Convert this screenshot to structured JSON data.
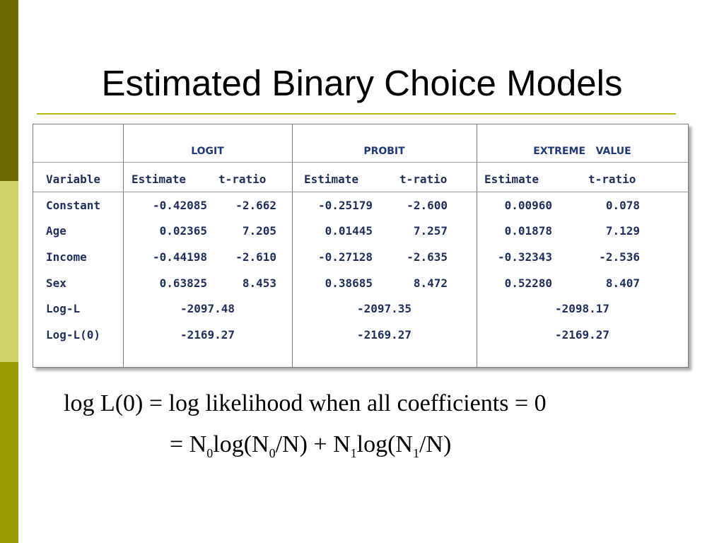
{
  "slide": {
    "title": "Estimated Binary Choice Models"
  },
  "table": {
    "groups": [
      "LOGIT",
      "PROBIT",
      "EXTREME   VALUE"
    ],
    "headers": {
      "variable": "Variable",
      "logit_est": "Estimate",
      "logit_t": "t-ratio",
      "probit_est": "Estimate",
      "probit_t": "t-ratio",
      "ev_est": "Estimate",
      "ev_t": "t-ratio"
    },
    "rows": [
      {
        "label": "Constant",
        "logit_est": "-0.42085",
        "logit_t": "-2.662",
        "probit_est": "-0.25179",
        "probit_t": "-2.600",
        "ev_est": "0.00960",
        "ev_t": "0.078"
      },
      {
        "label": "Age",
        "logit_est": "0.02365",
        "logit_t": "7.205",
        "probit_est": "0.01445",
        "probit_t": "7.257",
        "ev_est": "0.01878",
        "ev_t": "7.129"
      },
      {
        "label": "Income",
        "logit_est": "-0.44198",
        "logit_t": "-2.610",
        "probit_est": "-0.27128",
        "probit_t": "-2.635",
        "ev_est": "-0.32343",
        "ev_t": "-2.536"
      },
      {
        "label": "Sex",
        "logit_est": "0.63825",
        "logit_t": "8.453",
        "probit_est": "0.38685",
        "probit_t": "8.472",
        "ev_est": "0.52280",
        "ev_t": "8.407"
      }
    ],
    "summary": [
      {
        "label": "Log-L",
        "logit": "-2097.48",
        "probit": "-2097.35",
        "ev": "-2098.17"
      },
      {
        "label": "Log-L(0)",
        "logit": "-2169.27",
        "probit": "-2169.27",
        "ev": "-2169.27"
      }
    ]
  },
  "formula": {
    "line1": "log L(0) = log likelihood when all coefficients = 0",
    "eq": "=",
    "n": "N",
    "log_open": "log(N",
    "div": "/N)",
    "plus": "+",
    "sub0": "0",
    "sub1": "1"
  },
  "colors": {
    "sidebar_dark": "#6b6b00",
    "sidebar_light": "#d1d16a",
    "sidebar_mid": "#9c9c00",
    "title_rule": "#b7b700",
    "table_text": "#1f2f5c"
  }
}
